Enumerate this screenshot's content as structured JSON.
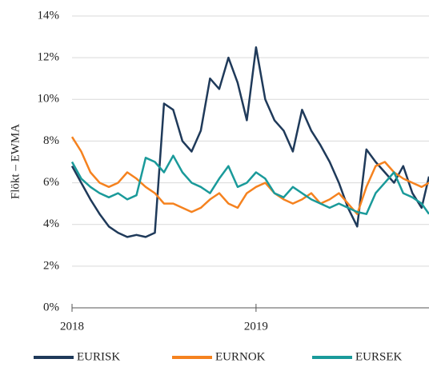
{
  "chart_data": {
    "type": "line",
    "y_label": "Flökt – EWMA",
    "x": [
      2018,
      2018.05,
      2018.1,
      2018.15,
      2018.2,
      2018.25,
      2018.3,
      2018.35,
      2018.4,
      2018.45,
      2018.5,
      2018.55,
      2018.6,
      2018.65,
      2018.7,
      2018.75,
      2018.8,
      2018.85,
      2018.9,
      2018.95,
      2019,
      2019.05,
      2019.1,
      2019.15,
      2019.2,
      2019.25,
      2019.3,
      2019.35,
      2019.4,
      2019.45,
      2019.5,
      2019.55,
      2019.6,
      2019.65,
      2019.7,
      2019.75,
      2019.8,
      2019.85,
      2019.9,
      2019.94
    ],
    "series": [
      {
        "name": "EURISK",
        "color": "#1f3a5a",
        "values": [
          6.8,
          6.0,
          5.2,
          4.5,
          3.9,
          3.6,
          3.4,
          3.5,
          3.4,
          3.6,
          9.8,
          9.5,
          8.0,
          7.5,
          8.5,
          11.0,
          10.5,
          12.0,
          10.8,
          9.0,
          12.5,
          10.0,
          9.0,
          8.5,
          7.5,
          9.5,
          8.5,
          7.8,
          7.0,
          6.0,
          4.8,
          3.9,
          7.6,
          7.0,
          6.5,
          6.0,
          6.8,
          5.5,
          4.8,
          6.3
        ]
      },
      {
        "name": "EURNOK",
        "color": "#f5821f",
        "values": [
          8.2,
          7.5,
          6.5,
          6.0,
          5.8,
          6.0,
          6.5,
          6.2,
          5.8,
          5.5,
          5.0,
          5.0,
          4.8,
          4.6,
          4.8,
          5.2,
          5.5,
          5.0,
          4.8,
          5.5,
          5.8,
          6.0,
          5.5,
          5.2,
          5.0,
          5.2,
          5.5,
          5.0,
          5.2,
          5.5,
          5.0,
          4.5,
          5.8,
          6.8,
          7.0,
          6.5,
          6.2,
          6.0,
          5.8,
          6.0
        ]
      },
      {
        "name": "EURSEK",
        "color": "#1a9a9a",
        "values": [
          7.0,
          6.2,
          5.8,
          5.5,
          5.3,
          5.5,
          5.2,
          5.4,
          7.2,
          7.0,
          6.5,
          7.3,
          6.5,
          6.0,
          5.8,
          5.5,
          6.2,
          6.8,
          5.8,
          6.0,
          6.5,
          6.2,
          5.5,
          5.3,
          5.8,
          5.5,
          5.2,
          5.0,
          4.8,
          5.0,
          4.8,
          4.6,
          4.5,
          5.5,
          6.0,
          6.5,
          5.5,
          5.3,
          5.0,
          4.5
        ]
      }
    ],
    "xlim": [
      2018,
      2019.94
    ],
    "xticks": [
      2018,
      2019
    ],
    "ylim": [
      0,
      14
    ],
    "yticks": [
      {
        "value": 0,
        "label": "0%"
      },
      {
        "value": 2,
        "label": "2%"
      },
      {
        "value": 4,
        "label": "4%"
      },
      {
        "value": 6,
        "label": "6%"
      },
      {
        "value": 8,
        "label": "8%"
      },
      {
        "value": 10,
        "label": "10%"
      },
      {
        "value": 12,
        "label": "12%"
      },
      {
        "value": 14,
        "label": "14%"
      }
    ],
    "grid": true
  }
}
